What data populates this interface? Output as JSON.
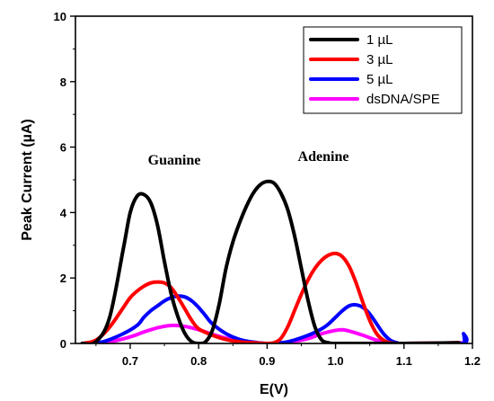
{
  "chart_data": {
    "type": "line",
    "title": "",
    "xlabel": "E(V)",
    "ylabel": "Peak Current (µA)",
    "xlim": [
      0.62,
      1.2
    ],
    "ylim": [
      0,
      10
    ],
    "x_ticks": [
      "0.7",
      "0.8",
      "0.9",
      "1.0",
      "1.1",
      "1.2"
    ],
    "y_ticks": [
      "0",
      "2",
      "4",
      "6",
      "8",
      "10"
    ],
    "grid": false,
    "legend_position": "top-right",
    "annotations": [
      {
        "text": "Guanine",
        "x": 0.71,
        "y": 5.6
      },
      {
        "text": "Adenine",
        "x": 0.9,
        "y": 5.6
      }
    ],
    "series": [
      {
        "name": "1 µL",
        "color": "#000000",
        "points": [
          [
            0.63,
            0
          ],
          [
            0.65,
            0.05
          ],
          [
            0.67,
            0.8
          ],
          [
            0.69,
            2.9
          ],
          [
            0.7,
            4.0
          ],
          [
            0.71,
            4.5
          ],
          [
            0.72,
            4.55
          ],
          [
            0.73,
            4.3
          ],
          [
            0.74,
            3.6
          ],
          [
            0.75,
            2.5
          ],
          [
            0.76,
            1.5
          ],
          [
            0.77,
            0.8
          ],
          [
            0.78,
            0.3
          ],
          [
            0.79,
            0.05
          ],
          [
            0.8,
            0.0
          ],
          [
            0.81,
            0.05
          ],
          [
            0.82,
            0.4
          ],
          [
            0.83,
            1.2
          ],
          [
            0.84,
            2.3
          ],
          [
            0.85,
            3.1
          ],
          [
            0.86,
            3.7
          ],
          [
            0.87,
            4.2
          ],
          [
            0.88,
            4.6
          ],
          [
            0.89,
            4.85
          ],
          [
            0.9,
            4.95
          ],
          [
            0.91,
            4.9
          ],
          [
            0.92,
            4.6
          ],
          [
            0.93,
            4.1
          ],
          [
            0.94,
            3.3
          ],
          [
            0.95,
            2.3
          ],
          [
            0.96,
            1.3
          ],
          [
            0.97,
            0.5
          ],
          [
            0.98,
            0.1
          ],
          [
            0.99,
            0.02
          ],
          [
            1.0,
            0.0
          ],
          [
            1.05,
            0.0
          ],
          [
            1.1,
            0.0
          ],
          [
            1.18,
            0.02
          ]
        ]
      },
      {
        "name": "3 µL",
        "color": "#ff0000",
        "points": [
          [
            0.63,
            0
          ],
          [
            0.65,
            0.1
          ],
          [
            0.67,
            0.5
          ],
          [
            0.69,
            1.1
          ],
          [
            0.7,
            1.4
          ],
          [
            0.71,
            1.6
          ],
          [
            0.72,
            1.75
          ],
          [
            0.73,
            1.85
          ],
          [
            0.74,
            1.88
          ],
          [
            0.75,
            1.85
          ],
          [
            0.76,
            1.7
          ],
          [
            0.77,
            1.4
          ],
          [
            0.78,
            1.05
          ],
          [
            0.79,
            0.7
          ],
          [
            0.8,
            0.45
          ],
          [
            0.82,
            0.25
          ],
          [
            0.84,
            0.12
          ],
          [
            0.86,
            0.05
          ],
          [
            0.88,
            0.02
          ],
          [
            0.9,
            0.0
          ],
          [
            0.91,
            0.02
          ],
          [
            0.92,
            0.15
          ],
          [
            0.93,
            0.5
          ],
          [
            0.94,
            1.0
          ],
          [
            0.95,
            1.5
          ],
          [
            0.96,
            1.95
          ],
          [
            0.97,
            2.3
          ],
          [
            0.98,
            2.55
          ],
          [
            0.99,
            2.7
          ],
          [
            1.0,
            2.75
          ],
          [
            1.01,
            2.65
          ],
          [
            1.02,
            2.35
          ],
          [
            1.03,
            1.85
          ],
          [
            1.04,
            1.25
          ],
          [
            1.05,
            0.7
          ],
          [
            1.06,
            0.3
          ],
          [
            1.07,
            0.1
          ],
          [
            1.08,
            0.02
          ],
          [
            1.1,
            0.0
          ],
          [
            1.18,
            0.02
          ]
        ]
      },
      {
        "name": "5 µL",
        "color": "#0000ff",
        "points": [
          [
            0.63,
            0
          ],
          [
            0.66,
            0.05
          ],
          [
            0.69,
            0.3
          ],
          [
            0.71,
            0.55
          ],
          [
            0.72,
            0.8
          ],
          [
            0.73,
            1.0
          ],
          [
            0.74,
            1.15
          ],
          [
            0.75,
            1.3
          ],
          [
            0.76,
            1.4
          ],
          [
            0.77,
            1.45
          ],
          [
            0.78,
            1.42
          ],
          [
            0.79,
            1.3
          ],
          [
            0.8,
            1.1
          ],
          [
            0.81,
            0.85
          ],
          [
            0.82,
            0.6
          ],
          [
            0.84,
            0.3
          ],
          [
            0.86,
            0.12
          ],
          [
            0.88,
            0.04
          ],
          [
            0.9,
            0.0
          ],
          [
            0.93,
            0.05
          ],
          [
            0.96,
            0.25
          ],
          [
            0.98,
            0.45
          ],
          [
            0.99,
            0.6
          ],
          [
            1.0,
            0.8
          ],
          [
            1.01,
            1.0
          ],
          [
            1.02,
            1.15
          ],
          [
            1.03,
            1.18
          ],
          [
            1.04,
            1.1
          ],
          [
            1.05,
            0.9
          ],
          [
            1.06,
            0.6
          ],
          [
            1.07,
            0.3
          ],
          [
            1.08,
            0.1
          ],
          [
            1.09,
            0.02
          ],
          [
            1.1,
            0.0
          ],
          [
            1.185,
            0.0
          ],
          [
            1.187,
            0.3
          ],
          [
            1.189,
            0.0
          ],
          [
            1.19,
            0.0
          ]
        ]
      },
      {
        "name": "dsDNA/SPE",
        "color": "#ff00ff",
        "points": [
          [
            0.63,
            0
          ],
          [
            0.67,
            0.05
          ],
          [
            0.7,
            0.2
          ],
          [
            0.72,
            0.35
          ],
          [
            0.74,
            0.48
          ],
          [
            0.76,
            0.55
          ],
          [
            0.78,
            0.52
          ],
          [
            0.8,
            0.42
          ],
          [
            0.82,
            0.28
          ],
          [
            0.84,
            0.16
          ],
          [
            0.86,
            0.08
          ],
          [
            0.88,
            0.03
          ],
          [
            0.9,
            0.0
          ],
          [
            0.93,
            0.03
          ],
          [
            0.96,
            0.15
          ],
          [
            0.98,
            0.3
          ],
          [
            1.0,
            0.4
          ],
          [
            1.01,
            0.42
          ],
          [
            1.02,
            0.38
          ],
          [
            1.04,
            0.25
          ],
          [
            1.06,
            0.1
          ],
          [
            1.08,
            0.03
          ],
          [
            1.1,
            0.0
          ],
          [
            1.19,
            0.02
          ]
        ]
      }
    ]
  }
}
